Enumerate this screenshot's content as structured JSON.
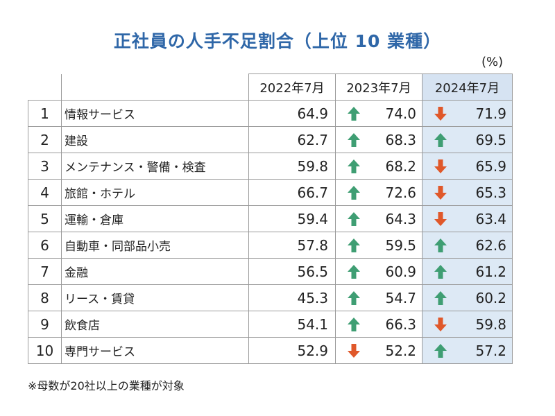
{
  "title": "正社員の人手不足割合（上位 10 業種）",
  "unit": "(%)",
  "note": "※母数が20社以上の業種が対象",
  "colors": {
    "title": "#2f67a8",
    "up_arrow": "#3f9e73",
    "down_arrow": "#e0582a",
    "highlight_column": "#dde9f5"
  },
  "chart_data": {
    "type": "table",
    "title": "正社員の人手不足割合（上位 10 業種）",
    "unit": "(%)",
    "columns": [
      "2022年7月",
      "2023年7月",
      "2024年7月"
    ],
    "rows": [
      {
        "rank": "1",
        "name": "情報サービス",
        "v2022": "64.9",
        "v2023": "74.0",
        "a2023": "up",
        "v2024": "71.9",
        "a2024": "down"
      },
      {
        "rank": "2",
        "name": "建設",
        "v2022": "62.7",
        "v2023": "68.3",
        "a2023": "up",
        "v2024": "69.5",
        "a2024": "up"
      },
      {
        "rank": "3",
        "name": "メンテナンス・警備・検査",
        "v2022": "59.8",
        "v2023": "68.2",
        "a2023": "up",
        "v2024": "65.9",
        "a2024": "down"
      },
      {
        "rank": "4",
        "name": "旅館・ホテル",
        "v2022": "66.7",
        "v2023": "72.6",
        "a2023": "up",
        "v2024": "65.3",
        "a2024": "down"
      },
      {
        "rank": "5",
        "name": "運輸・倉庫",
        "v2022": "59.4",
        "v2023": "64.3",
        "a2023": "up",
        "v2024": "63.4",
        "a2024": "down"
      },
      {
        "rank": "6",
        "name": "自動車・同部品小売",
        "v2022": "57.8",
        "v2023": "59.5",
        "a2023": "up",
        "v2024": "62.6",
        "a2024": "up"
      },
      {
        "rank": "7",
        "name": "金融",
        "v2022": "56.5",
        "v2023": "60.9",
        "a2023": "up",
        "v2024": "61.2",
        "a2024": "up"
      },
      {
        "rank": "8",
        "name": "リース・賃貸",
        "v2022": "45.3",
        "v2023": "54.7",
        "a2023": "up",
        "v2024": "60.2",
        "a2024": "up"
      },
      {
        "rank": "9",
        "name": "飲食店",
        "v2022": "54.1",
        "v2023": "66.3",
        "a2023": "up",
        "v2024": "59.8",
        "a2024": "down"
      },
      {
        "rank": "10",
        "name": "専門サービス",
        "v2022": "52.9",
        "v2023": "52.2",
        "a2023": "down",
        "v2024": "57.2",
        "a2024": "up"
      }
    ]
  }
}
